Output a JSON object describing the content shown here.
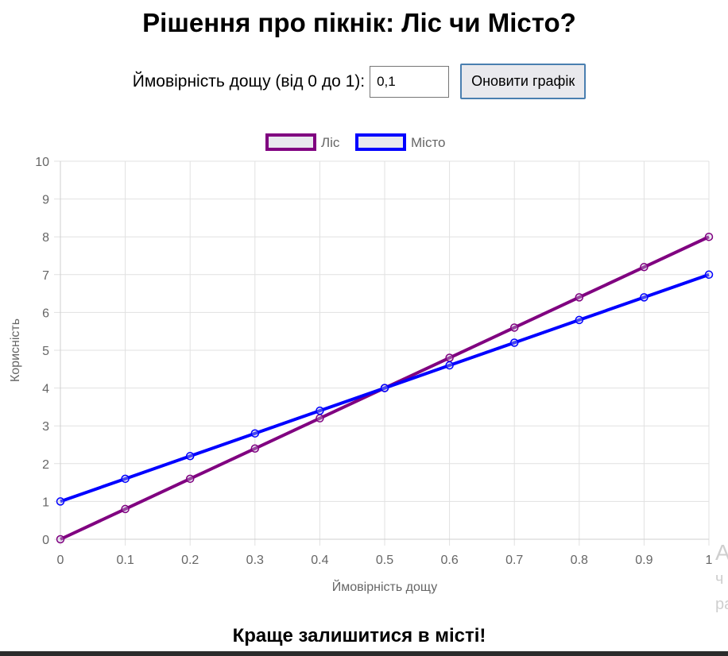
{
  "page": {
    "title": "Рішення про пікнік: Ліс чи Місто?",
    "result_text": "Краще залишитися в місті!"
  },
  "controls": {
    "label": "Ймовірність дощу (від 0 до 1):",
    "input_value": "0,1",
    "button_label": "Оновити графік"
  },
  "overflow_glyphs": [
    "A",
    "ч",
    "ра"
  ],
  "chart_data": {
    "type": "line",
    "x": [
      0,
      0.1,
      0.2,
      0.3,
      0.4,
      0.5,
      0.6,
      0.7,
      0.8,
      0.9,
      1
    ],
    "x_tick_labels": [
      "0",
      "0.1",
      "0.2",
      "0.3",
      "0.4",
      "0.5",
      "0.6",
      "0.7",
      "0.8",
      "0.9",
      "1"
    ],
    "y_tick_labels": [
      "0",
      "1",
      "2",
      "3",
      "4",
      "5",
      "6",
      "7",
      "8",
      "9",
      "10"
    ],
    "series": [
      {
        "name": "Ліс",
        "color": "#800080",
        "values": [
          0,
          0.8,
          1.6,
          2.4,
          3.2,
          4,
          4.8,
          5.6,
          6.4,
          7.2,
          8
        ]
      },
      {
        "name": "Місто",
        "color": "#0000ff",
        "values": [
          1,
          1.6,
          2.2,
          2.8,
          3.4,
          4,
          4.6,
          5.2,
          5.8,
          6.4,
          7
        ]
      }
    ],
    "xlabel": "Ймовірність дощу",
    "ylabel": "Корисність",
    "xlim": [
      0,
      1
    ],
    "ylim": [
      0,
      10
    ],
    "grid": true,
    "legend_position": "top"
  }
}
